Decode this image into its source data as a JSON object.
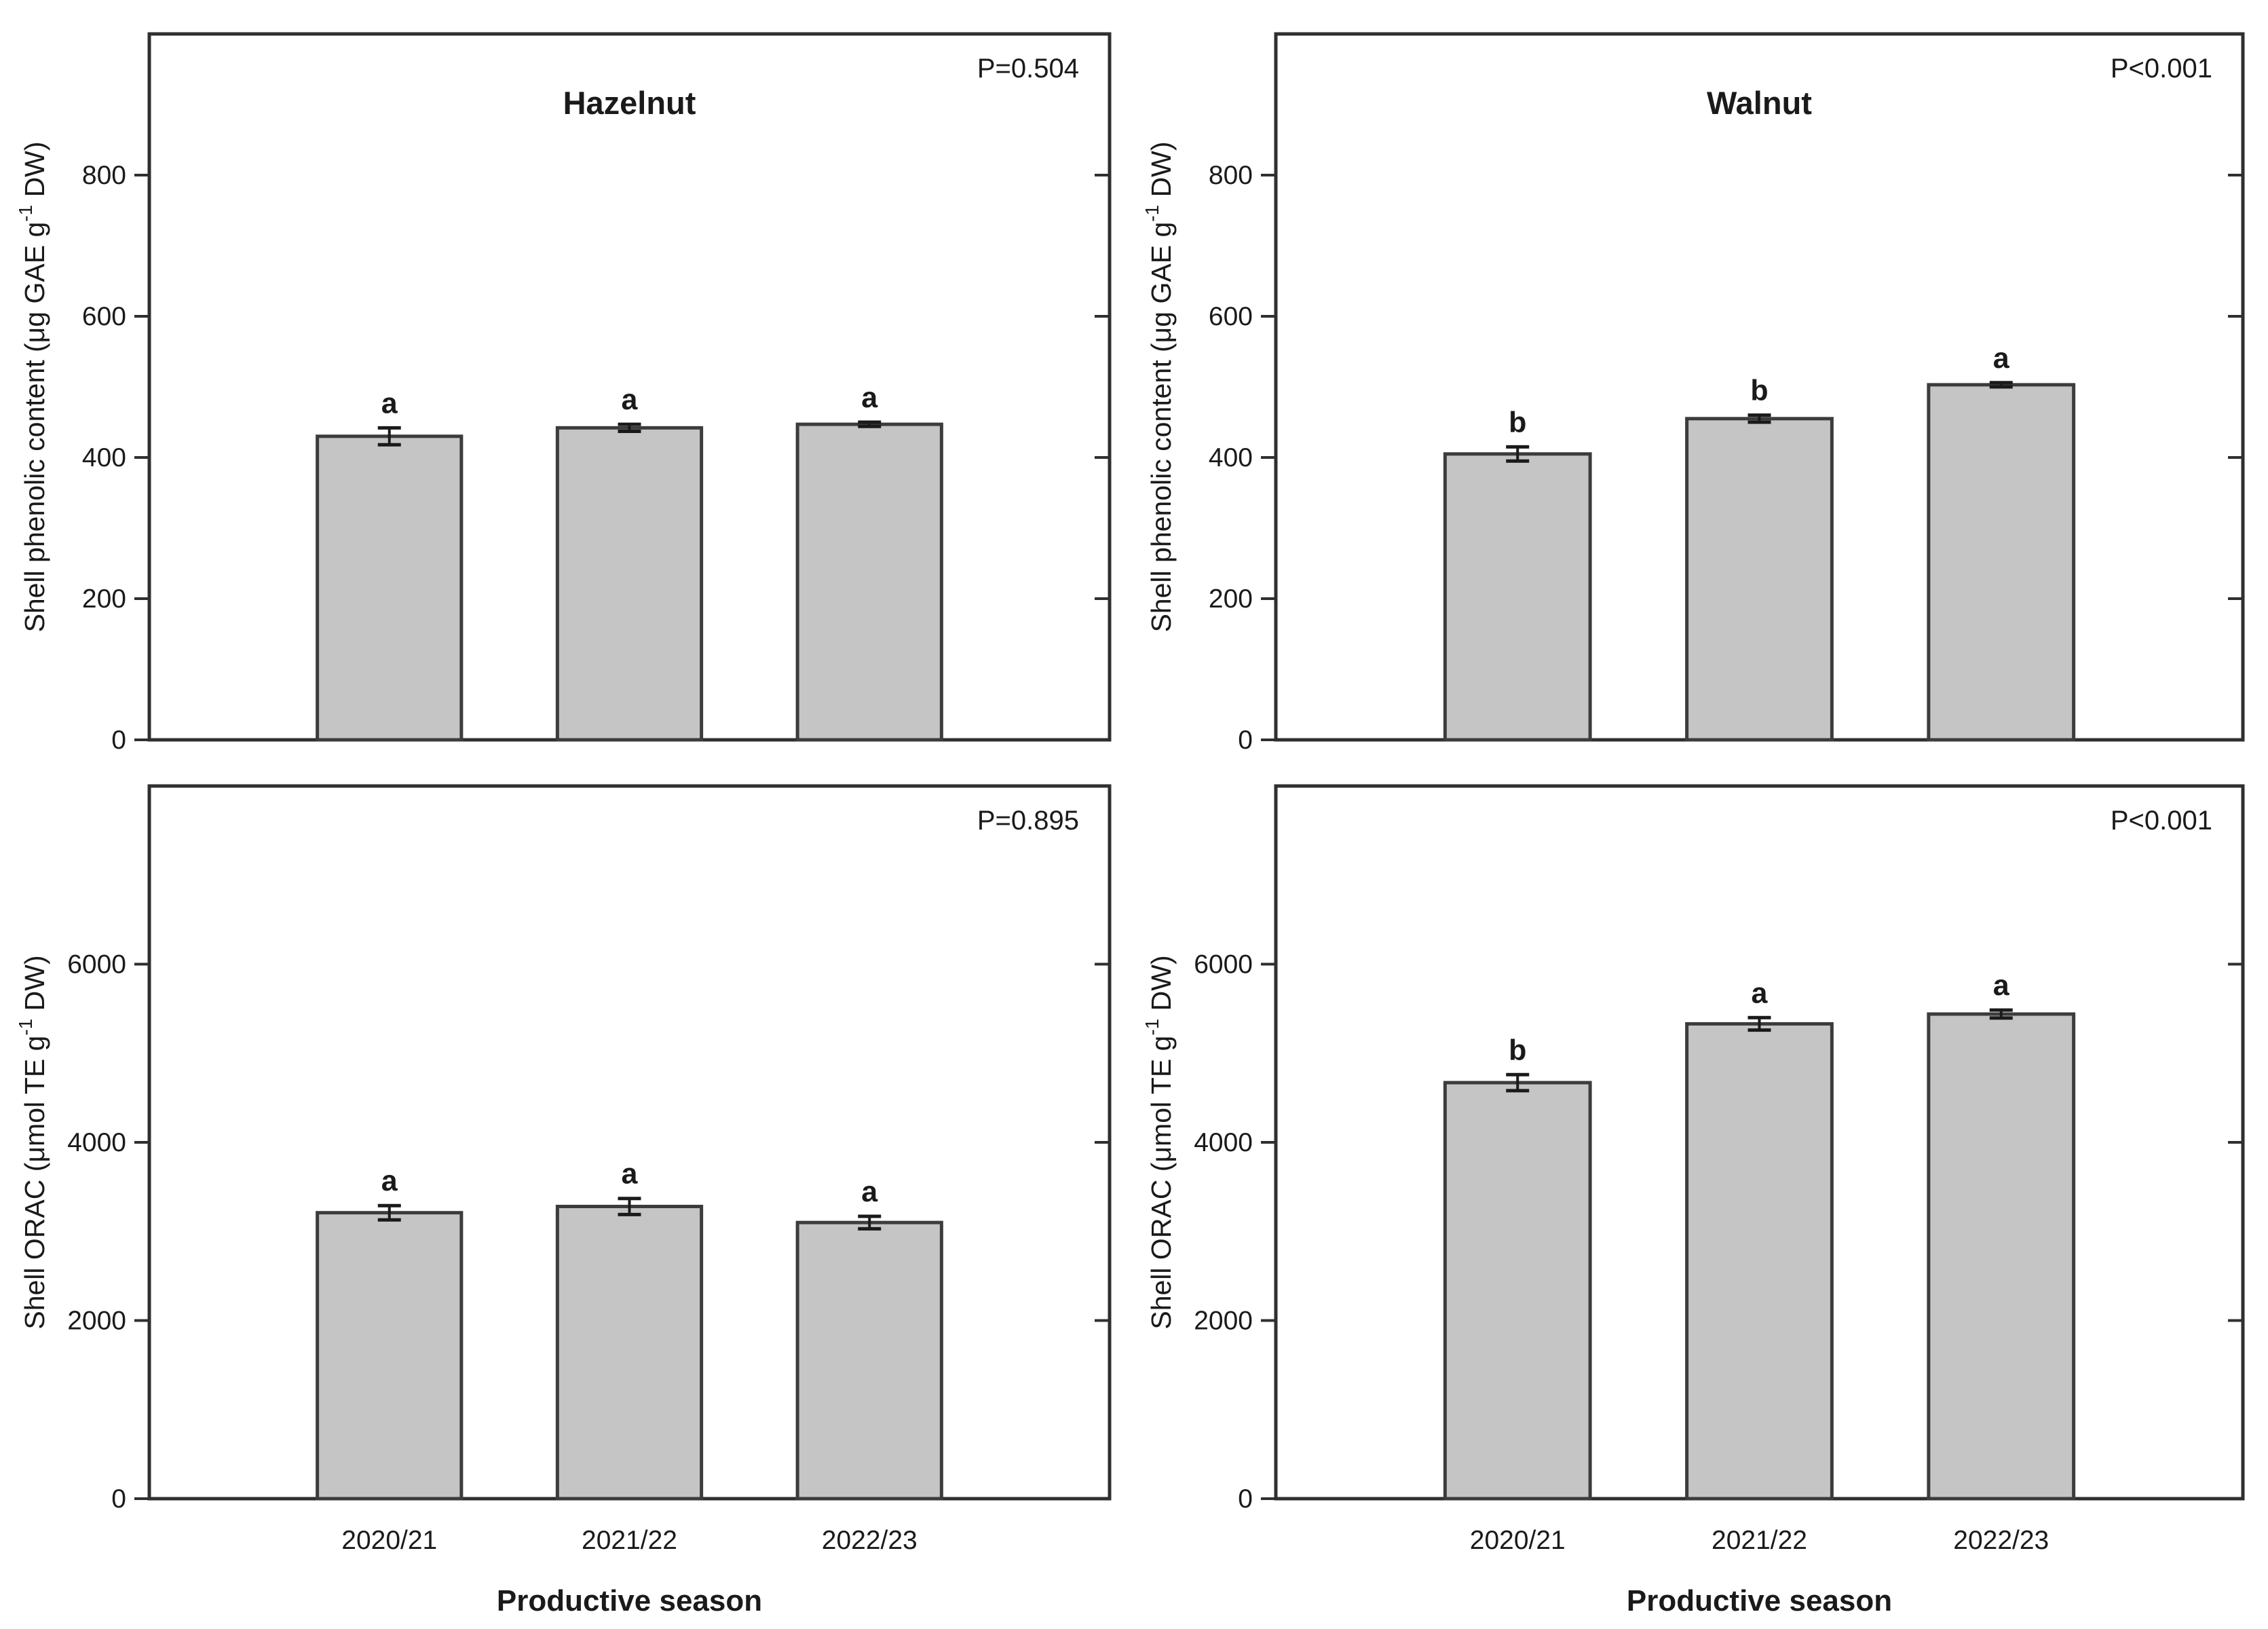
{
  "figure": {
    "background": "#ffffff",
    "bar_fill": "#c5c5c5",
    "bar_stroke": "#3c3c3c",
    "axis_color": "#2f2f2f",
    "error_color": "#1a1a1a",
    "text_color": "#1a1a1a",
    "xlabel": "Productive season",
    "categories": [
      "2020/21",
      "2021/22",
      "2022/23"
    ]
  },
  "chart_data": [
    {
      "type": "bar",
      "position": "top-left",
      "title": "Hazelnut",
      "p_label": "P=0.504",
      "ylabel": "Shell phenolic content (μg GAE g⁻¹ DW)",
      "ylabel_parts": [
        {
          "t": "Shell phenolic content (μg GAE g"
        },
        {
          "t": "-1",
          "sup": true
        },
        {
          "t": " DW)"
        }
      ],
      "categories": [
        "2020/21",
        "2021/22",
        "2022/23"
      ],
      "values": [
        430,
        442,
        447
      ],
      "errors": [
        12,
        5,
        3
      ],
      "letters": [
        "a",
        "a",
        "a"
      ],
      "yticks": [
        0,
        200,
        400,
        600,
        800
      ],
      "ylim": [
        0,
        1000
      ],
      "show_x_tick_labels": false,
      "xlabel": ""
    },
    {
      "type": "bar",
      "position": "top-right",
      "title": "Walnut",
      "p_label": "P<0.001",
      "ylabel": "Shell phenolic content (μg GAE g⁻¹ DW)",
      "ylabel_parts": [
        {
          "t": "Shell phenolic content (μg GAE g"
        },
        {
          "t": "-1",
          "sup": true
        },
        {
          "t": " DW)"
        }
      ],
      "categories": [
        "2020/21",
        "2021/22",
        "2022/23"
      ],
      "values": [
        405,
        455,
        503
      ],
      "errors": [
        10,
        5,
        3
      ],
      "letters": [
        "b",
        "b",
        "a"
      ],
      "yticks": [
        0,
        200,
        400,
        600,
        800
      ],
      "ylim": [
        0,
        1000
      ],
      "show_x_tick_labels": false,
      "xlabel": ""
    },
    {
      "type": "bar",
      "position": "bottom-left",
      "title": "",
      "p_label": "P=0.895",
      "ylabel": "Shell ORAC (μmol TE g⁻¹ DW)",
      "ylabel_parts": [
        {
          "t": "Shell ORAC (μmol TE g"
        },
        {
          "t": "-1",
          "sup": true
        },
        {
          "t": " DW)"
        }
      ],
      "categories": [
        "2020/21",
        "2021/22",
        "2022/23"
      ],
      "values": [
        3210,
        3280,
        3100
      ],
      "errors": [
        80,
        90,
        70
      ],
      "letters": [
        "a",
        "a",
        "a"
      ],
      "yticks": [
        0,
        2000,
        4000,
        6000
      ],
      "ylim": [
        0,
        8000
      ],
      "show_x_tick_labels": true,
      "xlabel": "Productive season"
    },
    {
      "type": "bar",
      "position": "bottom-right",
      "title": "",
      "p_label": "P<0.001",
      "ylabel": "Shell ORAC (μmol TE g⁻¹ DW)",
      "ylabel_parts": [
        {
          "t": "Shell ORAC (μmol TE g"
        },
        {
          "t": "-1",
          "sup": true
        },
        {
          "t": " DW)"
        }
      ],
      "categories": [
        "2020/21",
        "2021/22",
        "2022/23"
      ],
      "values": [
        4670,
        5330,
        5440
      ],
      "errors": [
        90,
        70,
        45
      ],
      "letters": [
        "b",
        "a",
        "a"
      ],
      "yticks": [
        0,
        2000,
        4000,
        6000
      ],
      "ylim": [
        0,
        8000
      ],
      "show_x_tick_labels": true,
      "xlabel": "Productive season"
    }
  ]
}
